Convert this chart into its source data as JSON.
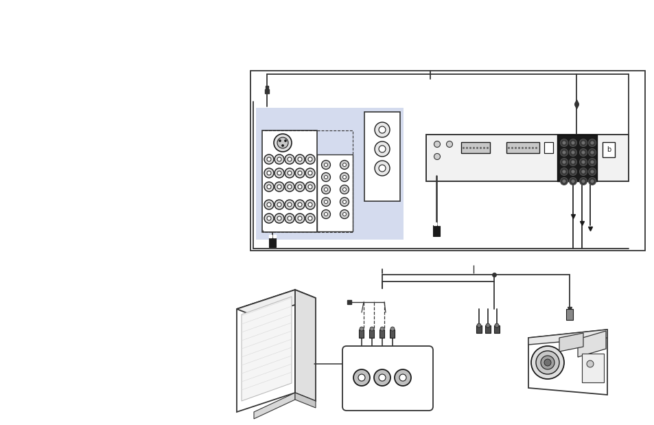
{
  "bg_color": "#ffffff",
  "highlight_color": "#cdd5ec",
  "line_color": "#333333",
  "dark_color": "#1a1a1a",
  "gray_color": "#888888",
  "light_gray": "#bbbbbb",
  "border_color": "#333333",
  "figsize": [
    9.54,
    6.19
  ],
  "dpi": 100
}
